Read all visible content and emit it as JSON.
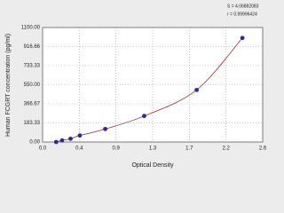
{
  "chart_data": {
    "type": "scatter",
    "xlabel": "Optical Density",
    "ylabel": "Human FCGRT concentration (pg/ml)",
    "annotations": [
      "S = 4.06882083",
      "r = 0.99996424"
    ],
    "series": [
      {
        "color": "#2a2a9a",
        "line_color": "#a52a2a",
        "x": [
          0.16,
          0.23,
          0.33,
          0.44,
          0.74,
          1.2,
          1.82,
          2.36
        ],
        "values": [
          0,
          15.6,
          31.2,
          62.5,
          125,
          250,
          500,
          1000
        ]
      }
    ],
    "xlim": [
      0,
      2.6
    ],
    "xticks": [
      {
        "value": 0,
        "label": "0.0"
      },
      {
        "value": 0.433,
        "label": "0.4"
      },
      {
        "value": 0.867,
        "label": "0.9"
      },
      1.3,
      {
        "value": 1.733,
        "label": "1.7"
      },
      {
        "value": 2.167,
        "label": "2.2"
      },
      2.6
    ],
    "ylim": [
      0,
      1100
    ],
    "yticks": [
      {
        "value": 0,
        "label": "0.00"
      },
      {
        "value": 183.33,
        "label": "183.33"
      },
      {
        "value": 366.67,
        "label": "366.67"
      },
      {
        "value": 550,
        "label": "550.00"
      },
      {
        "value": 733.33,
        "label": "733.33"
      },
      {
        "value": 916.66,
        "label": "916.66"
      },
      {
        "value": 1100,
        "label": "1100.00"
      }
    ],
    "grid": true
  }
}
